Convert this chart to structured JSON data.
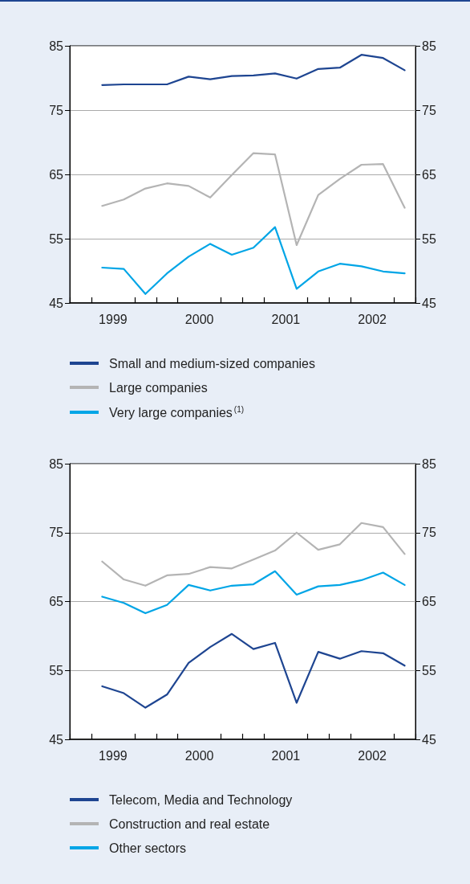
{
  "chart_data": [
    {
      "type": "line",
      "x": [
        1999.375,
        1999.625,
        1999.875,
        2000.125,
        2000.375,
        2000.625,
        2000.875,
        2001.125,
        2001.375,
        2001.625,
        2001.875,
        2002.125,
        2002.375,
        2002.625,
        2002.875
      ],
      "series": [
        {
          "name": "Small and medium-sized companies",
          "color": "#1e4591",
          "values": [
            78.9,
            79.0,
            79.0,
            79.0,
            80.2,
            79.8,
            80.3,
            80.4,
            80.7,
            79.9,
            81.4,
            81.6,
            83.6,
            83.1,
            81.2
          ]
        },
        {
          "name": "Large companies",
          "color": "#b4b4b4",
          "values": [
            60.1,
            61.1,
            62.8,
            63.6,
            63.2,
            61.4,
            64.9,
            68.3,
            68.1,
            54.0,
            61.8,
            64.3,
            66.5,
            66.6,
            59.8
          ]
        },
        {
          "name": "Very large companies$^{(1)}$",
          "color": "#00a5e6",
          "values": [
            50.5,
            50.3,
            46.4,
            49.6,
            52.2,
            54.2,
            52.5,
            53.6,
            56.8,
            47.2,
            49.9,
            51.1,
            50.7,
            49.9,
            49.6
          ]
        }
      ],
      "xlim": [
        1999,
        2003
      ],
      "xticks": [
        {
          "value": 1999,
          "label": null
        },
        {
          "value": 1999.25,
          "label": null
        },
        {
          "value": 1999.5,
          "label": "1999"
        },
        {
          "value": 1999.75,
          "label": null
        },
        {
          "value": 2000,
          "label": null
        },
        {
          "value": 2000.25,
          "label": null
        },
        {
          "value": 2000.5,
          "label": "2000"
        },
        {
          "value": 2000.75,
          "label": null
        },
        {
          "value": 2001,
          "label": null
        },
        {
          "value": 2001.25,
          "label": null
        },
        {
          "value": 2001.5,
          "label": "2001"
        },
        {
          "value": 2001.75,
          "label": null
        },
        {
          "value": 2002,
          "label": null
        },
        {
          "value": 2002.25,
          "label": null
        },
        {
          "value": 2002.5,
          "label": "2002"
        },
        {
          "value": 2002.75,
          "label": null
        },
        {
          "value": 2003,
          "label": null
        }
      ],
      "ylim": [
        45,
        85
      ],
      "yticks": [
        45,
        55,
        65,
        75,
        85
      ],
      "y2lim": [
        45,
        85
      ],
      "y2ticks": [
        45,
        55,
        65,
        75,
        85
      ],
      "grid": "y",
      "legend": "bottom",
      "marker": "none",
      "line_style": "solid"
    },
    {
      "type": "line",
      "x": [
        1999.375,
        1999.625,
        1999.875,
        2000.125,
        2000.375,
        2000.625,
        2000.875,
        2001.125,
        2001.375,
        2001.625,
        2001.875,
        2002.125,
        2002.375,
        2002.625,
        2002.875
      ],
      "series": [
        {
          "name": "Telecom, Media and Technology",
          "color": "#1e4591",
          "values": [
            52.7,
            51.7,
            49.6,
            51.5,
            56.1,
            58.4,
            60.3,
            58.1,
            59.0,
            50.3,
            57.7,
            56.7,
            57.8,
            57.5,
            55.7
          ]
        },
        {
          "name": "Construction and real estate",
          "color": "#b4b4b4",
          "values": [
            70.8,
            68.2,
            67.3,
            68.8,
            69.0,
            70.0,
            69.8,
            71.1,
            72.4,
            75.0,
            72.5,
            73.3,
            76.4,
            75.8,
            71.9
          ]
        },
        {
          "name": "Other sectors",
          "color": "#00a5e6",
          "values": [
            65.7,
            64.8,
            63.3,
            64.5,
            67.4,
            66.6,
            67.3,
            67.5,
            69.4,
            66.0,
            67.2,
            67.4,
            68.1,
            69.2,
            67.4
          ]
        }
      ],
      "xlim": [
        1999,
        2003
      ],
      "xticks": [
        {
          "value": 1999,
          "label": null
        },
        {
          "value": 1999.25,
          "label": null
        },
        {
          "value": 1999.5,
          "label": "1999"
        },
        {
          "value": 1999.75,
          "label": null
        },
        {
          "value": 2000,
          "label": null
        },
        {
          "value": 2000.25,
          "label": null
        },
        {
          "value": 2000.5,
          "label": "2000"
        },
        {
          "value": 2000.75,
          "label": null
        },
        {
          "value": 2001,
          "label": null
        },
        {
          "value": 2001.25,
          "label": null
        },
        {
          "value": 2001.5,
          "label": "2001"
        },
        {
          "value": 2001.75,
          "label": null
        },
        {
          "value": 2002,
          "label": null
        },
        {
          "value": 2002.25,
          "label": null
        },
        {
          "value": 2002.5,
          "label": "2002"
        },
        {
          "value": 2002.75,
          "label": null
        },
        {
          "value": 2003,
          "label": null
        }
      ],
      "ylim": [
        45,
        85
      ],
      "yticks": [
        45,
        55,
        65,
        75,
        85
      ],
      "y2lim": [
        45,
        85
      ],
      "y2ticks": [
        45,
        55,
        65,
        75,
        85
      ],
      "grid": "y",
      "legend": "bottom",
      "marker": "none",
      "line_style": "solid"
    }
  ]
}
